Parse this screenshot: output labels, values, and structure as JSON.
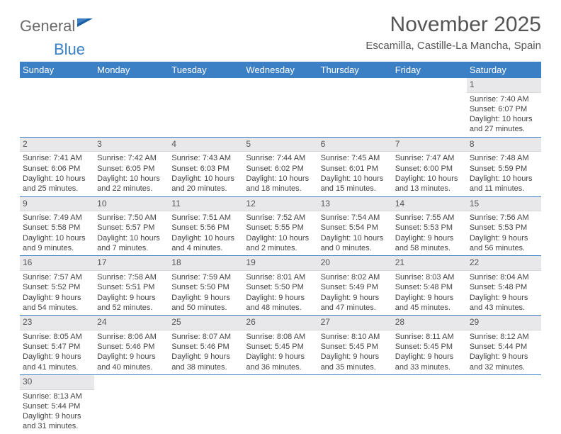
{
  "logo": {
    "part1": "General",
    "part2": "Blue"
  },
  "title": "November 2025",
  "location": "Escamilla, Castille-La Mancha, Spain",
  "colors": {
    "header_bg": "#3b7fc4",
    "header_text": "#ffffff",
    "day_num_bg": "#e8e8ea",
    "row_border": "#3b7fc4",
    "body_text": "#444444",
    "title_text": "#555555"
  },
  "fonts": {
    "title_size_pt": 22,
    "location_size_pt": 11,
    "header_cell_pt": 10,
    "cell_text_pt": 8
  },
  "weekdays": [
    "Sunday",
    "Monday",
    "Tuesday",
    "Wednesday",
    "Thursday",
    "Friday",
    "Saturday"
  ],
  "weeks": [
    [
      null,
      null,
      null,
      null,
      null,
      null,
      {
        "n": "1",
        "sunrise": "Sunrise: 7:40 AM",
        "sunset": "Sunset: 6:07 PM",
        "daylight": "Daylight: 10 hours and 27 minutes."
      }
    ],
    [
      {
        "n": "2",
        "sunrise": "Sunrise: 7:41 AM",
        "sunset": "Sunset: 6:06 PM",
        "daylight": "Daylight: 10 hours and 25 minutes."
      },
      {
        "n": "3",
        "sunrise": "Sunrise: 7:42 AM",
        "sunset": "Sunset: 6:05 PM",
        "daylight": "Daylight: 10 hours and 22 minutes."
      },
      {
        "n": "4",
        "sunrise": "Sunrise: 7:43 AM",
        "sunset": "Sunset: 6:03 PM",
        "daylight": "Daylight: 10 hours and 20 minutes."
      },
      {
        "n": "5",
        "sunrise": "Sunrise: 7:44 AM",
        "sunset": "Sunset: 6:02 PM",
        "daylight": "Daylight: 10 hours and 18 minutes."
      },
      {
        "n": "6",
        "sunrise": "Sunrise: 7:45 AM",
        "sunset": "Sunset: 6:01 PM",
        "daylight": "Daylight: 10 hours and 15 minutes."
      },
      {
        "n": "7",
        "sunrise": "Sunrise: 7:47 AM",
        "sunset": "Sunset: 6:00 PM",
        "daylight": "Daylight: 10 hours and 13 minutes."
      },
      {
        "n": "8",
        "sunrise": "Sunrise: 7:48 AM",
        "sunset": "Sunset: 5:59 PM",
        "daylight": "Daylight: 10 hours and 11 minutes."
      }
    ],
    [
      {
        "n": "9",
        "sunrise": "Sunrise: 7:49 AM",
        "sunset": "Sunset: 5:58 PM",
        "daylight": "Daylight: 10 hours and 9 minutes."
      },
      {
        "n": "10",
        "sunrise": "Sunrise: 7:50 AM",
        "sunset": "Sunset: 5:57 PM",
        "daylight": "Daylight: 10 hours and 7 minutes."
      },
      {
        "n": "11",
        "sunrise": "Sunrise: 7:51 AM",
        "sunset": "Sunset: 5:56 PM",
        "daylight": "Daylight: 10 hours and 4 minutes."
      },
      {
        "n": "12",
        "sunrise": "Sunrise: 7:52 AM",
        "sunset": "Sunset: 5:55 PM",
        "daylight": "Daylight: 10 hours and 2 minutes."
      },
      {
        "n": "13",
        "sunrise": "Sunrise: 7:54 AM",
        "sunset": "Sunset: 5:54 PM",
        "daylight": "Daylight: 10 hours and 0 minutes."
      },
      {
        "n": "14",
        "sunrise": "Sunrise: 7:55 AM",
        "sunset": "Sunset: 5:53 PM",
        "daylight": "Daylight: 9 hours and 58 minutes."
      },
      {
        "n": "15",
        "sunrise": "Sunrise: 7:56 AM",
        "sunset": "Sunset: 5:53 PM",
        "daylight": "Daylight: 9 hours and 56 minutes."
      }
    ],
    [
      {
        "n": "16",
        "sunrise": "Sunrise: 7:57 AM",
        "sunset": "Sunset: 5:52 PM",
        "daylight": "Daylight: 9 hours and 54 minutes."
      },
      {
        "n": "17",
        "sunrise": "Sunrise: 7:58 AM",
        "sunset": "Sunset: 5:51 PM",
        "daylight": "Daylight: 9 hours and 52 minutes."
      },
      {
        "n": "18",
        "sunrise": "Sunrise: 7:59 AM",
        "sunset": "Sunset: 5:50 PM",
        "daylight": "Daylight: 9 hours and 50 minutes."
      },
      {
        "n": "19",
        "sunrise": "Sunrise: 8:01 AM",
        "sunset": "Sunset: 5:50 PM",
        "daylight": "Daylight: 9 hours and 48 minutes."
      },
      {
        "n": "20",
        "sunrise": "Sunrise: 8:02 AM",
        "sunset": "Sunset: 5:49 PM",
        "daylight": "Daylight: 9 hours and 47 minutes."
      },
      {
        "n": "21",
        "sunrise": "Sunrise: 8:03 AM",
        "sunset": "Sunset: 5:48 PM",
        "daylight": "Daylight: 9 hours and 45 minutes."
      },
      {
        "n": "22",
        "sunrise": "Sunrise: 8:04 AM",
        "sunset": "Sunset: 5:48 PM",
        "daylight": "Daylight: 9 hours and 43 minutes."
      }
    ],
    [
      {
        "n": "23",
        "sunrise": "Sunrise: 8:05 AM",
        "sunset": "Sunset: 5:47 PM",
        "daylight": "Daylight: 9 hours and 41 minutes."
      },
      {
        "n": "24",
        "sunrise": "Sunrise: 8:06 AM",
        "sunset": "Sunset: 5:46 PM",
        "daylight": "Daylight: 9 hours and 40 minutes."
      },
      {
        "n": "25",
        "sunrise": "Sunrise: 8:07 AM",
        "sunset": "Sunset: 5:46 PM",
        "daylight": "Daylight: 9 hours and 38 minutes."
      },
      {
        "n": "26",
        "sunrise": "Sunrise: 8:08 AM",
        "sunset": "Sunset: 5:45 PM",
        "daylight": "Daylight: 9 hours and 36 minutes."
      },
      {
        "n": "27",
        "sunrise": "Sunrise: 8:10 AM",
        "sunset": "Sunset: 5:45 PM",
        "daylight": "Daylight: 9 hours and 35 minutes."
      },
      {
        "n": "28",
        "sunrise": "Sunrise: 8:11 AM",
        "sunset": "Sunset: 5:45 PM",
        "daylight": "Daylight: 9 hours and 33 minutes."
      },
      {
        "n": "29",
        "sunrise": "Sunrise: 8:12 AM",
        "sunset": "Sunset: 5:44 PM",
        "daylight": "Daylight: 9 hours and 32 minutes."
      }
    ],
    [
      {
        "n": "30",
        "sunrise": "Sunrise: 8:13 AM",
        "sunset": "Sunset: 5:44 PM",
        "daylight": "Daylight: 9 hours and 31 minutes."
      },
      null,
      null,
      null,
      null,
      null,
      null
    ]
  ]
}
